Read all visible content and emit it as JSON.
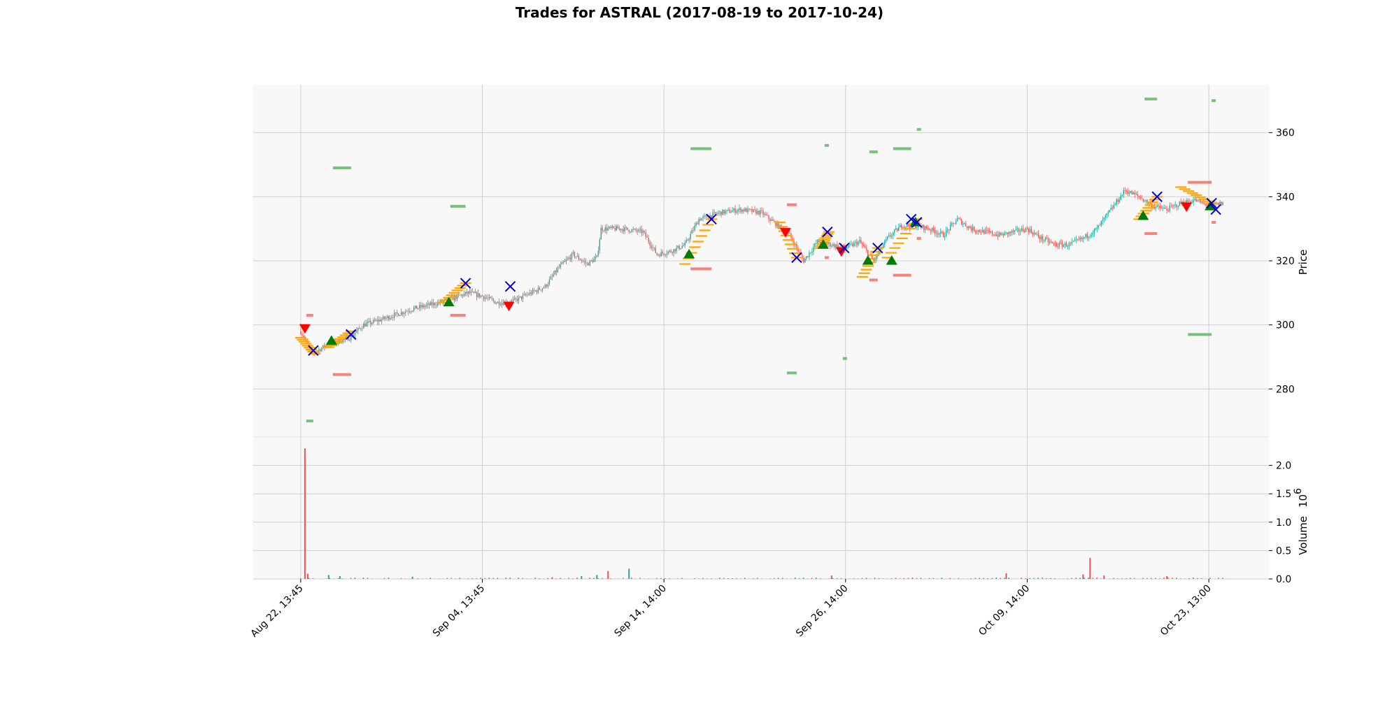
{
  "chart_data": {
    "type": "candlestick",
    "title": "Trades for ASTRAL (2017-08-19 to 2017-10-24)",
    "price_axis": {
      "label": "Price",
      "ticks": [
        280,
        300,
        320,
        340,
        360
      ],
      "range": [
        265,
        375
      ],
      "position": "right"
    },
    "volume_axis": {
      "label": "Volume",
      "exponent_label": "10",
      "exponent": "6",
      "ticks": [
        "0.0",
        "0.5",
        "1.0",
        "1.5",
        "2.0"
      ],
      "tick_values": [
        0,
        0.5,
        1.0,
        1.5,
        2.0
      ],
      "range": [
        0,
        2.5
      ],
      "position": "right"
    },
    "x_axis": {
      "tick_labels": [
        "Aug 22, 13:45",
        "Sep 04, 13:45",
        "Sep 14, 14:00",
        "Sep 26, 14:00",
        "Oct 09, 14:00",
        "Oct 23, 13:00"
      ],
      "tick_index": [
        0,
        130,
        260,
        390,
        520,
        650
      ],
      "index_range": [
        -34,
        693
      ]
    },
    "grid": true,
    "colors": {
      "up": "#26a69a",
      "down": "#ef5350",
      "buy_marker": "#007a00",
      "sell_marker": "#ff0000",
      "exit_marker": "#0000cc",
      "limit_level": "#ffa500",
      "take_profit": "#4caf50",
      "stop_loss": "#f44336",
      "panel_bg": "#f8f8f8",
      "grid": "#d0d0d0"
    },
    "price_path": [
      [
        0,
        298
      ],
      [
        8,
        291
      ],
      [
        20,
        294
      ],
      [
        35,
        296
      ],
      [
        45,
        300
      ],
      [
        60,
        302
      ],
      [
        80,
        305
      ],
      [
        100,
        307
      ],
      [
        120,
        310
      ],
      [
        130,
        309
      ],
      [
        140,
        307
      ],
      [
        150,
        307
      ],
      [
        160,
        309
      ],
      [
        175,
        312
      ],
      [
        185,
        318
      ],
      [
        195,
        322
      ],
      [
        205,
        319
      ],
      [
        212,
        321
      ],
      [
        215,
        330
      ],
      [
        230,
        330
      ],
      [
        245,
        329
      ],
      [
        255,
        322
      ],
      [
        265,
        323
      ],
      [
        275,
        325
      ],
      [
        285,
        333
      ],
      [
        300,
        335
      ],
      [
        315,
        336
      ],
      [
        330,
        335
      ],
      [
        350,
        328
      ],
      [
        360,
        320
      ],
      [
        370,
        326
      ],
      [
        380,
        325
      ],
      [
        390,
        324
      ],
      [
        400,
        326
      ],
      [
        410,
        320
      ],
      [
        420,
        327
      ],
      [
        430,
        331
      ],
      [
        440,
        331
      ],
      [
        450,
        330
      ],
      [
        460,
        328
      ],
      [
        470,
        333
      ],
      [
        480,
        330
      ],
      [
        490,
        329
      ],
      [
        500,
        328
      ],
      [
        510,
        329
      ],
      [
        520,
        330
      ],
      [
        530,
        327
      ],
      [
        540,
        325
      ],
      [
        550,
        325
      ],
      [
        560,
        327
      ],
      [
        570,
        330
      ],
      [
        580,
        336
      ],
      [
        590,
        342
      ],
      [
        600,
        340
      ],
      [
        610,
        337
      ],
      [
        620,
        336
      ],
      [
        630,
        338
      ],
      [
        640,
        339
      ],
      [
        650,
        337
      ],
      [
        660,
        338
      ]
    ],
    "entry_markers": [
      {
        "side": "sell",
        "i": 3,
        "price": 299
      },
      {
        "side": "buy",
        "i": 22,
        "price": 295
      },
      {
        "side": "buy",
        "i": 106,
        "price": 307
      },
      {
        "side": "sell",
        "i": 149,
        "price": 306
      },
      {
        "side": "buy",
        "i": 278,
        "price": 322
      },
      {
        "side": "sell",
        "i": 347,
        "price": 329
      },
      {
        "side": "buy",
        "i": 374,
        "price": 325
      },
      {
        "side": "sell",
        "i": 387,
        "price": 323
      },
      {
        "side": "buy",
        "i": 406,
        "price": 320
      },
      {
        "side": "buy",
        "i": 423,
        "price": 320
      },
      {
        "side": "buy",
        "i": 440,
        "price": 332
      },
      {
        "side": "buy",
        "i": 603,
        "price": 334
      },
      {
        "side": "sell",
        "i": 634,
        "price": 337
      },
      {
        "side": "buy",
        "i": 651,
        "price": 337
      }
    ],
    "exit_markers": [
      {
        "i": 9,
        "price": 292
      },
      {
        "i": 36,
        "price": 297
      },
      {
        "i": 118,
        "price": 313
      },
      {
        "i": 150,
        "price": 312
      },
      {
        "i": 294,
        "price": 333
      },
      {
        "i": 355,
        "price": 321
      },
      {
        "i": 377,
        "price": 329
      },
      {
        "i": 389,
        "price": 324
      },
      {
        "i": 413,
        "price": 324
      },
      {
        "i": 437,
        "price": 333
      },
      {
        "i": 441,
        "price": 332
      },
      {
        "i": 613,
        "price": 340
      },
      {
        "i": 652,
        "price": 338
      },
      {
        "i": 655,
        "price": 336
      }
    ],
    "take_profit_levels": [
      {
        "i0": 3,
        "i1": 9,
        "price": 270
      },
      {
        "i0": 22,
        "i1": 36,
        "price": 349
      },
      {
        "i0": 106,
        "i1": 118,
        "price": 337
      },
      {
        "i0": 278,
        "i1": 294,
        "price": 355
      },
      {
        "i0": 347,
        "i1": 355,
        "price": 285
      },
      {
        "i0": 374,
        "i1": 377,
        "price": 356
      },
      {
        "i0": 387,
        "i1": 389,
        "price": 289.5
      },
      {
        "i0": 406,
        "i1": 413,
        "price": 354
      },
      {
        "i0": 423,
        "i1": 437,
        "price": 355
      },
      {
        "i0": 440,
        "i1": 441,
        "price": 361
      },
      {
        "i0": 603,
        "i1": 613,
        "price": 370.5
      },
      {
        "i0": 634,
        "i1": 652,
        "price": 297
      },
      {
        "i0": 651,
        "i1": 655,
        "price": 370
      }
    ],
    "stop_loss_levels": [
      {
        "i0": 3,
        "i1": 9,
        "price": 303
      },
      {
        "i0": 22,
        "i1": 36,
        "price": 284.5
      },
      {
        "i0": 106,
        "i1": 118,
        "price": 303
      },
      {
        "i0": 278,
        "i1": 294,
        "price": 317.5
      },
      {
        "i0": 347,
        "i1": 355,
        "price": 337.5
      },
      {
        "i0": 374,
        "i1": 377,
        "price": 321
      },
      {
        "i0": 387,
        "i1": 389,
        "price": 324.5
      },
      {
        "i0": 406,
        "i1": 413,
        "price": 314
      },
      {
        "i0": 423,
        "i1": 437,
        "price": 315.5
      },
      {
        "i0": 440,
        "i1": 441,
        "price": 327
      },
      {
        "i0": 603,
        "i1": 613,
        "price": 328.5
      },
      {
        "i0": 634,
        "i1": 652,
        "price": 344.5
      },
      {
        "i0": 651,
        "i1": 655,
        "price": 332
      }
    ],
    "limit_ladders": [
      {
        "i0": 0,
        "i1": 10,
        "p0": 296,
        "p1": 291
      },
      {
        "i0": 20,
        "i1": 36,
        "p0": 293,
        "p1": 298
      },
      {
        "i0": 102,
        "i1": 118,
        "p0": 307,
        "p1": 313
      },
      {
        "i0": 275,
        "i1": 294,
        "p0": 319,
        "p1": 333
      },
      {
        "i0": 343,
        "i1": 355,
        "p0": 332,
        "p1": 321
      },
      {
        "i0": 372,
        "i1": 378,
        "p0": 324,
        "p1": 329
      },
      {
        "i0": 402,
        "i1": 413,
        "p0": 315,
        "p1": 324
      },
      {
        "i0": 420,
        "i1": 441,
        "p0": 321,
        "p1": 333
      },
      {
        "i0": 600,
        "i1": 613,
        "p0": 333,
        "p1": 340
      },
      {
        "i0": 630,
        "i1": 652,
        "p0": 343,
        "p1": 338
      }
    ],
    "volume_spikes": [
      {
        "i": 3,
        "value": 2.3,
        "dir": "down"
      },
      {
        "i": 5,
        "value": 0.09,
        "dir": "down"
      },
      {
        "i": 20,
        "value": 0.07,
        "dir": "up"
      },
      {
        "i": 28,
        "value": 0.05,
        "dir": "up"
      },
      {
        "i": 80,
        "value": 0.04,
        "dir": "up"
      },
      {
        "i": 180,
        "value": 0.03,
        "dir": "down"
      },
      {
        "i": 201,
        "value": 0.05,
        "dir": "up"
      },
      {
        "i": 212,
        "value": 0.07,
        "dir": "up"
      },
      {
        "i": 220,
        "value": 0.14,
        "dir": "down"
      },
      {
        "i": 235,
        "value": 0.18,
        "dir": "up"
      },
      {
        "i": 380,
        "value": 0.06,
        "dir": "down"
      },
      {
        "i": 505,
        "value": 0.1,
        "dir": "down"
      },
      {
        "i": 560,
        "value": 0.08,
        "dir": "down"
      },
      {
        "i": 565,
        "value": 0.37,
        "dir": "down"
      },
      {
        "i": 575,
        "value": 0.06,
        "dir": "down"
      },
      {
        "i": 620,
        "value": 0.05,
        "dir": "down"
      }
    ]
  }
}
